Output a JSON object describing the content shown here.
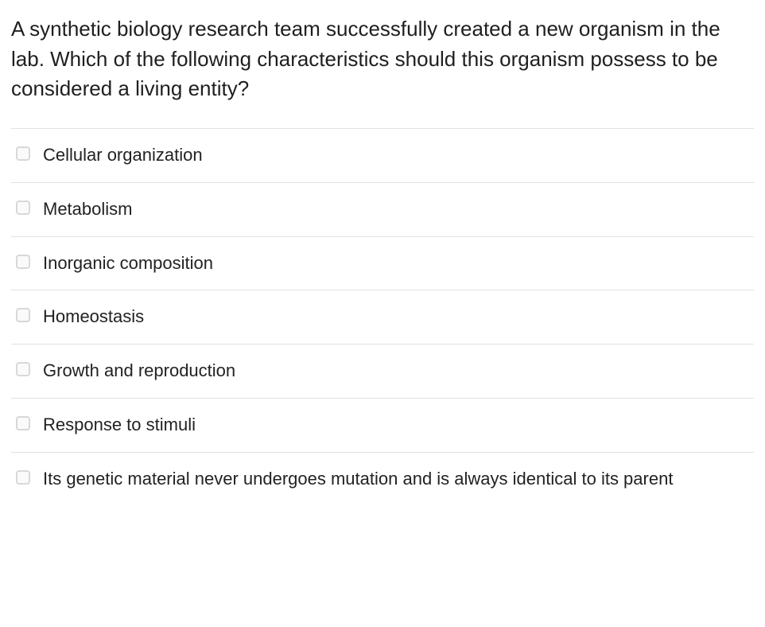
{
  "question": {
    "text": "A synthetic biology research team successfully created a new organism in the lab. Which of the following characteristics should this organism possess to be considered a living entity?"
  },
  "options": [
    {
      "label": "Cellular organization",
      "checked": false
    },
    {
      "label": "Metabolism",
      "checked": false
    },
    {
      "label": "Inorganic composition",
      "checked": false
    },
    {
      "label": "Homeostasis",
      "checked": false
    },
    {
      "label": "Growth and reproduction",
      "checked": false
    },
    {
      "label": "Response to stimuli",
      "checked": false
    },
    {
      "label": "Its genetic material never undergoes mutation and is always identical to its parent",
      "checked": false
    }
  ],
  "colors": {
    "text": "#222222",
    "border": "#e2e2e2",
    "checkbox_border": "#d8d8d8",
    "background": "#ffffff"
  },
  "typography": {
    "question_fontsize": 26,
    "option_fontsize": 22
  }
}
